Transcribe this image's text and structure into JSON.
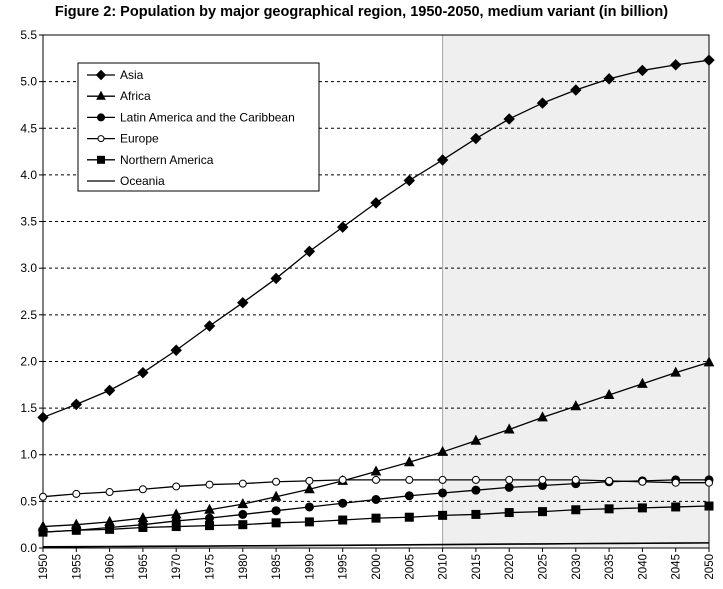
{
  "chart_data": {
    "type": "line",
    "title": "Figure 2: Population by major geographical region, 1950-2050, medium variant (in billion)",
    "xlabel": "",
    "ylabel": "",
    "x": [
      "1950",
      "1955",
      "1960",
      "1965",
      "1970",
      "1975",
      "1980",
      "1985",
      "1990",
      "1995",
      "2000",
      "2005",
      "2010",
      "2015",
      "2020",
      "2025",
      "2030",
      "2035",
      "2040",
      "2045",
      "2050"
    ],
    "ylim": [
      0,
      5.5
    ],
    "ytick_labels": [
      "0.0",
      "0.5",
      "1.0",
      "1.5",
      "2.0",
      "2.5",
      "3.0",
      "3.5",
      "4.0",
      "4.5",
      "5.0",
      "5.5"
    ],
    "grid": "horizontal dashed",
    "projection_shading_from": "2010",
    "legend_position": "top-left",
    "series": [
      {
        "name": "Asia",
        "marker": "diamond",
        "values": [
          1.4,
          1.54,
          1.69,
          1.88,
          2.12,
          2.38,
          2.63,
          2.89,
          3.18,
          3.44,
          3.7,
          3.94,
          4.16,
          4.39,
          4.6,
          4.77,
          4.91,
          5.03,
          5.12,
          5.18,
          5.23
        ]
      },
      {
        "name": "Africa",
        "marker": "triangle",
        "values": [
          0.23,
          0.25,
          0.28,
          0.32,
          0.36,
          0.41,
          0.47,
          0.55,
          0.63,
          0.72,
          0.82,
          0.92,
          1.03,
          1.15,
          1.27,
          1.4,
          1.52,
          1.64,
          1.76,
          1.88,
          1.99
        ]
      },
      {
        "name": "Latin America and the Caribbean",
        "marker": "circle-filled",
        "values": [
          0.17,
          0.19,
          0.22,
          0.25,
          0.29,
          0.32,
          0.36,
          0.4,
          0.44,
          0.48,
          0.52,
          0.56,
          0.59,
          0.62,
          0.65,
          0.67,
          0.69,
          0.71,
          0.72,
          0.73,
          0.73
        ]
      },
      {
        "name": "Europe",
        "marker": "circle-open",
        "values": [
          0.55,
          0.58,
          0.6,
          0.63,
          0.66,
          0.68,
          0.69,
          0.71,
          0.72,
          0.73,
          0.73,
          0.73,
          0.73,
          0.73,
          0.73,
          0.73,
          0.73,
          0.72,
          0.71,
          0.7,
          0.7
        ]
      },
      {
        "name": "Northern America",
        "marker": "square",
        "values": [
          0.17,
          0.19,
          0.2,
          0.22,
          0.23,
          0.24,
          0.25,
          0.27,
          0.28,
          0.3,
          0.32,
          0.33,
          0.35,
          0.36,
          0.38,
          0.39,
          0.41,
          0.42,
          0.43,
          0.44,
          0.45
        ]
      },
      {
        "name": "Oceania",
        "marker": "none",
        "values": [
          0.013,
          0.014,
          0.016,
          0.018,
          0.019,
          0.021,
          0.023,
          0.025,
          0.027,
          0.029,
          0.031,
          0.034,
          0.037,
          0.039,
          0.042,
          0.044,
          0.047,
          0.049,
          0.051,
          0.053,
          0.055
        ]
      }
    ]
  }
}
